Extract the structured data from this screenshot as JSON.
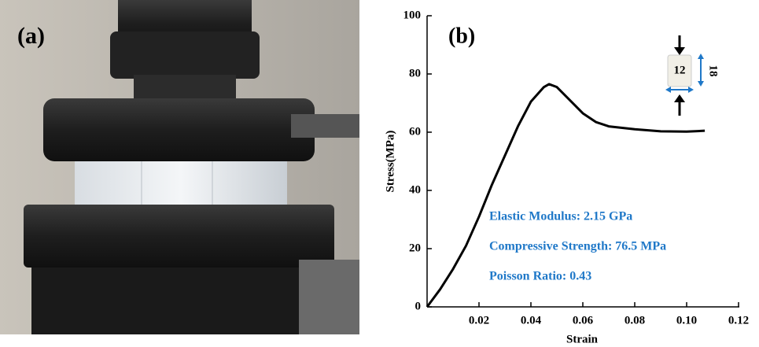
{
  "photo": {
    "label": "(a)"
  },
  "chart_data": {
    "type": "line",
    "panel_label": "(b)",
    "x_label": "Strain",
    "y_label": "Stress(MPa)",
    "x": [
      0,
      0.005,
      0.01,
      0.015,
      0.02,
      0.025,
      0.03,
      0.035,
      0.04,
      0.045,
      0.047,
      0.05,
      0.055,
      0.06,
      0.065,
      0.07,
      0.08,
      0.09,
      0.1,
      0.107
    ],
    "values": [
      0,
      6,
      13,
      21,
      31,
      42,
      52,
      62,
      70.5,
      75.5,
      76.5,
      75.5,
      71,
      66.5,
      63.5,
      62,
      61,
      60.3,
      60.2,
      60.5
    ],
    "color": "#000000",
    "xlim": [
      0,
      0.12
    ],
    "xticks": [
      0.02,
      0.04,
      0.06,
      0.08,
      {
        "value": 0.1,
        "label": "0.10"
      },
      0.12
    ],
    "ylim": [
      0,
      100
    ],
    "yticks": [
      0,
      20,
      40,
      60,
      80,
      100
    ],
    "grid": false,
    "annotations": [
      "Elastic Modulus:  2.15 GPa",
      "Compressive Strength: 76.5 MPa",
      "Poisson Ratio: 0.43"
    ],
    "annotation_color": "#1f78c8",
    "inset": {
      "width": 12,
      "height": 18
    }
  }
}
